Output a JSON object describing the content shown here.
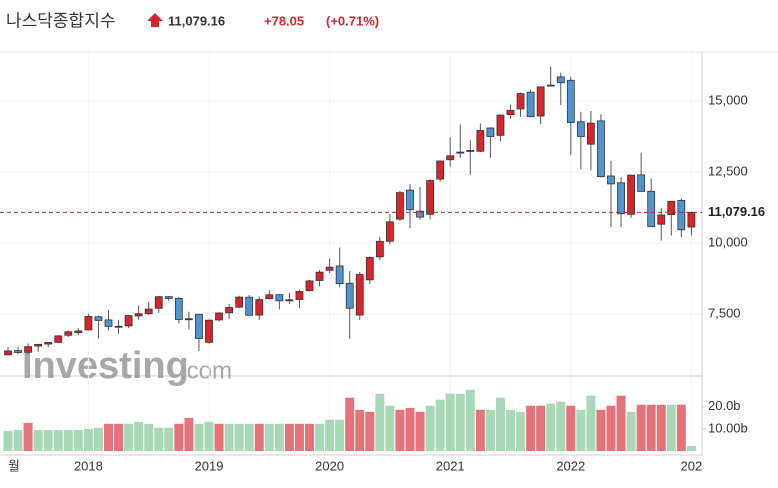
{
  "chart_data": {
    "type": "candlestick",
    "title": "나스닥종합지수",
    "change": "+78.05",
    "change_pct": "(+0.71%)",
    "last_price": {
      "value": 11079.16,
      "label": "11,079.16"
    },
    "watermark": "Investing",
    "watermark_suffix": ".com",
    "up_color": "#d6262b",
    "down_color": "#4f93cf",
    "grid": true,
    "categories": [
      "월",
      null,
      null,
      null,
      null,
      null,
      null,
      null,
      "2018",
      null,
      null,
      null,
      null,
      null,
      null,
      null,
      null,
      null,
      null,
      null,
      "2019",
      null,
      null,
      null,
      null,
      null,
      null,
      null,
      null,
      null,
      null,
      null,
      "2020",
      null,
      null,
      null,
      null,
      null,
      null,
      null,
      null,
      null,
      null,
      null,
      "2021",
      null,
      null,
      null,
      null,
      null,
      null,
      null,
      null,
      null,
      null,
      null,
      "2022",
      null,
      null,
      null,
      null,
      null,
      null,
      null,
      null,
      null,
      null,
      null,
      "202"
    ],
    "open": [
      6060,
      6210,
      6150,
      6370,
      6440,
      6500,
      6750,
      6840,
      6937,
      7400,
      7290,
      7060,
      7080,
      7430,
      7510,
      7700,
      8110,
      8050,
      7330,
      7490,
      6500,
      7290,
      7540,
      7740,
      8090,
      7460,
      8040,
      8180,
      7970,
      8010,
      8320,
      8680,
      9040,
      9190,
      8580,
      7460,
      8700,
      9510,
      10060,
      10840,
      11860,
      11120,
      11010,
      12250,
      12930,
      13200,
      13260,
      13230,
      14050,
      13790,
      14520,
      14720,
      15310,
      14470,
      15560,
      15850,
      15730,
      14270,
      13480,
      14300,
      12360,
      12120,
      11010,
      12400,
      11820,
      10660,
      11000,
      11500,
      10560
    ],
    "high": [
      6340,
      6341,
      6460,
      6450,
      6500,
      6750,
      6915,
      7000,
      7505,
      7440,
      7637,
      7290,
      7460,
      7806,
      7933,
      8133,
      8128,
      8100,
      7580,
      7500,
      7300,
      7560,
      7850,
      8140,
      8170,
      8110,
      8340,
      8200,
      8240,
      8350,
      8700,
      9052,
      9450,
      9840,
      9010,
      8980,
      9530,
      10220,
      11020,
      11830,
      12074,
      11970,
      12250,
      12900,
      13730,
      14175,
      13620,
      14211,
      14070,
      14530,
      14870,
      15300,
      15400,
      15500,
      16212,
      16000,
      15850,
      14620,
      14650,
      14530,
      12890,
      12320,
      12400,
      13181,
      12270,
      11240,
      11470,
      11570,
      11100
    ],
    "low": [
      6040,
      6080,
      6090,
      6170,
      6330,
      6480,
      6690,
      6760,
      6924,
      6630,
      6932,
      6805,
      7000,
      7300,
      7470,
      7540,
      7950,
      7160,
      6960,
      6190,
      6460,
      7230,
      7330,
      7700,
      7440,
      7290,
      8010,
      7660,
      7850,
      7700,
      8290,
      8470,
      8940,
      8440,
      6630,
      7290,
      8560,
      9400,
      9950,
      10770,
      10520,
      10820,
      10830,
      12160,
      12690,
      13000,
      12397,
      13200,
      13000,
      13580,
      14380,
      14440,
      14430,
      14180,
      15510,
      14860,
      13094,
      12587,
      12555,
      12300,
      10565,
      10565,
      10890,
      11810,
      10565,
      10089,
      10262,
      10207,
      10264
    ],
    "close": [
      6199,
      6140,
      6348,
      6429,
      6496,
      6728,
      6874,
      6903,
      7411,
      7273,
      7063,
      7066,
      7442,
      7510,
      7672,
      8109,
      8046,
      7306,
      7331,
      6635,
      7282,
      7533,
      7729,
      8095,
      7453,
      8006,
      8175,
      7963,
      7999,
      8292,
      8665,
      8973,
      9150,
      8567,
      7700,
      8890,
      9490,
      10059,
      10745,
      11775,
      11168,
      10912,
      12199,
      12888,
      13070,
      13192,
      13247,
      13962,
      13749,
      14504,
      14673,
      15259,
      14448,
      15498,
      15538,
      15645,
      14240,
      13751,
      14221,
      12335,
      12081,
      11029,
      12391,
      11816,
      10575,
      10988,
      11468,
      10466,
      11079
    ],
    "ylim": [
      5350,
      16620
    ],
    "yticks": [
      {
        "value": 7500,
        "label": "7,500"
      },
      {
        "value": 10000,
        "label": "10,000"
      },
      {
        "value": 12500,
        "label": "12,500"
      },
      {
        "value": 15000,
        "label": "15,000"
      }
    ],
    "volume": {
      "values": [
        9.1,
        9.5,
        12.7,
        9.5,
        9.5,
        9.5,
        9.5,
        9.5,
        10,
        10.5,
        12.3,
        12.3,
        12.3,
        13.2,
        12.3,
        10.5,
        10.5,
        12.3,
        15,
        12.3,
        13.2,
        12.3,
        12.3,
        12.3,
        12.3,
        12.3,
        12.3,
        12.3,
        12.3,
        12.3,
        12.3,
        12.3,
        14.1,
        14.1,
        24.1,
        18.6,
        17.7,
        25.9,
        20.5,
        18.6,
        19.5,
        17.7,
        20.5,
        23.2,
        25.9,
        25.9,
        27.7,
        18.6,
        18.6,
        24.1,
        18.6,
        17.7,
        20.5,
        20.5,
        21.4,
        22.3,
        20.5,
        18.6,
        25,
        18.6,
        20.5,
        25,
        17.7,
        20.9,
        20.9,
        20.9,
        20.9,
        20.9,
        2.3
      ],
      "colors": [
        "#a8d8b6",
        "#a8d8b6",
        "#e5737a",
        "#a8d8b6",
        "#a8d8b6",
        "#a8d8b6",
        "#a8d8b6",
        "#a8d8b6",
        "#a8d8b6",
        "#a8d8b6",
        "#e5737a",
        "#e5737a",
        "#a8d8b6",
        "#a8d8b6",
        "#a8d8b6",
        "#a8d8b6",
        "#a8d8b6",
        "#e5737a",
        "#e5737a",
        "#a8d8b6",
        "#a8d8b6",
        "#e5737a",
        "#a8d8b6",
        "#a8d8b6",
        "#a8d8b6",
        "#e5737a",
        "#a8d8b6",
        "#a8d8b6",
        "#e5737a",
        "#e5737a",
        "#e5737a",
        "#a8d8b6",
        "#a8d8b6",
        "#a8d8b6",
        "#e5737a",
        "#e5737a",
        "#e5737a",
        "#a8d8b6",
        "#a8d8b6",
        "#e5737a",
        "#e5737a",
        "#e5737a",
        "#a8d8b6",
        "#a8d8b6",
        "#a8d8b6",
        "#a8d8b6",
        "#a8d8b6",
        "#e5737a",
        "#a8d8b6",
        "#a8d8b6",
        "#a8d8b6",
        "#a8d8b6",
        "#e5737a",
        "#e5737a",
        "#a8d8b6",
        "#a8d8b6",
        "#e5737a",
        "#a8d8b6",
        "#a8d8b6",
        "#e5737a",
        "#e5737a",
        "#e5737a",
        "#a8d8b6",
        "#e5737a",
        "#e5737a",
        "#e5737a",
        "#a8d8b6",
        "#e5737a",
        "#a8d8b6"
      ],
      "ylim": [
        0,
        33
      ],
      "yticks": [
        {
          "value": 10,
          "label": "10.00b"
        },
        {
          "value": 20,
          "label": "20.0b"
        }
      ]
    }
  }
}
